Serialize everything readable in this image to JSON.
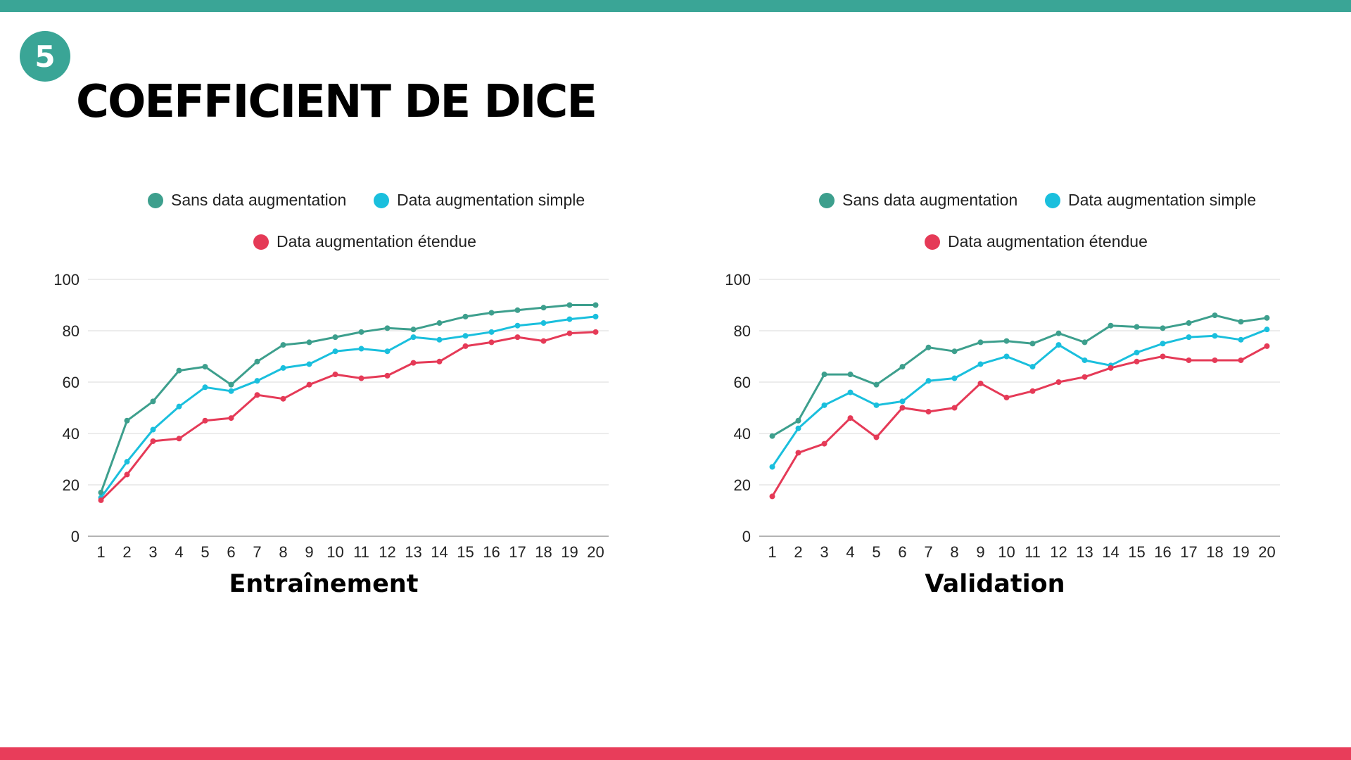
{
  "badge": {
    "number": "5"
  },
  "title": "COEFFICIENT DE DICE",
  "colors": {
    "accent_top": "#3aa596",
    "accent_bottom": "#e83d5a",
    "sans": "#3d9f8d",
    "simple": "#1abfdd",
    "etendue": "#e53a57",
    "grid": "#d9d9d9",
    "axis": "#888888"
  },
  "legend": [
    {
      "label": "Sans data augmentation",
      "color": "#3d9f8d"
    },
    {
      "label": "Data augmentation simple",
      "color": "#1abfdd"
    },
    {
      "label": "Data augmentation étendue",
      "color": "#e53a57"
    }
  ],
  "captions": {
    "train": "Entraînement",
    "val": "Validation"
  },
  "chart_data": [
    {
      "type": "line",
      "title": "Entraînement",
      "x": [
        1,
        2,
        3,
        4,
        5,
        6,
        7,
        8,
        9,
        10,
        11,
        12,
        13,
        14,
        15,
        16,
        17,
        18,
        19,
        20
      ],
      "ylim": [
        0,
        100
      ],
      "yticks": [
        0,
        20,
        40,
        60,
        80,
        100
      ],
      "grid": true,
      "legend_position": "top",
      "series": [
        {
          "name": "Sans data augmentation",
          "color": "#3d9f8d",
          "values": [
            17,
            45,
            52.5,
            64.5,
            66,
            59,
            68,
            74.5,
            75.5,
            77.5,
            79.5,
            81,
            80.5,
            83,
            85.5,
            87,
            88,
            89,
            90,
            90
          ]
        },
        {
          "name": "Data augmentation simple",
          "color": "#1abfdd",
          "values": [
            15,
            29,
            41.5,
            50.5,
            58,
            56.5,
            60.5,
            65.5,
            67,
            72,
            73,
            72,
            77.5,
            76.5,
            78,
            79.5,
            82,
            83,
            84.5,
            85.5
          ]
        },
        {
          "name": "Data augmentation étendue",
          "color": "#e53a57",
          "values": [
            14,
            24,
            37,
            38,
            45,
            46,
            55,
            53.5,
            59,
            63,
            61.5,
            62.5,
            67.5,
            68,
            74,
            75.5,
            77.5,
            76,
            79,
            79.5
          ]
        }
      ]
    },
    {
      "type": "line",
      "title": "Validation",
      "x": [
        1,
        2,
        3,
        4,
        5,
        6,
        7,
        8,
        9,
        10,
        11,
        12,
        13,
        14,
        15,
        16,
        17,
        18,
        19,
        20
      ],
      "ylim": [
        0,
        100
      ],
      "yticks": [
        0,
        20,
        40,
        60,
        80,
        100
      ],
      "grid": true,
      "legend_position": "top",
      "series": [
        {
          "name": "Sans data augmentation",
          "color": "#3d9f8d",
          "values": [
            39,
            45,
            63,
            63,
            59,
            66,
            73.5,
            72,
            75.5,
            76,
            75,
            79,
            75.5,
            82,
            81.5,
            81,
            83,
            86,
            83.5,
            85
          ]
        },
        {
          "name": "Data augmentation simple",
          "color": "#1abfdd",
          "values": [
            27,
            42,
            51,
            56,
            51,
            52.5,
            60.5,
            61.5,
            67,
            70,
            66,
            74.5,
            68.5,
            66.5,
            71.5,
            75,
            77.5,
            78,
            76.5,
            80.5
          ]
        },
        {
          "name": "Data augmentation étendue",
          "color": "#e53a57",
          "values": [
            15.5,
            32.5,
            36,
            46,
            38.5,
            50,
            48.5,
            50,
            59.5,
            54,
            56.5,
            60,
            62,
            65.5,
            68,
            70,
            68.5,
            68.5,
            68.5,
            74
          ]
        }
      ]
    }
  ]
}
